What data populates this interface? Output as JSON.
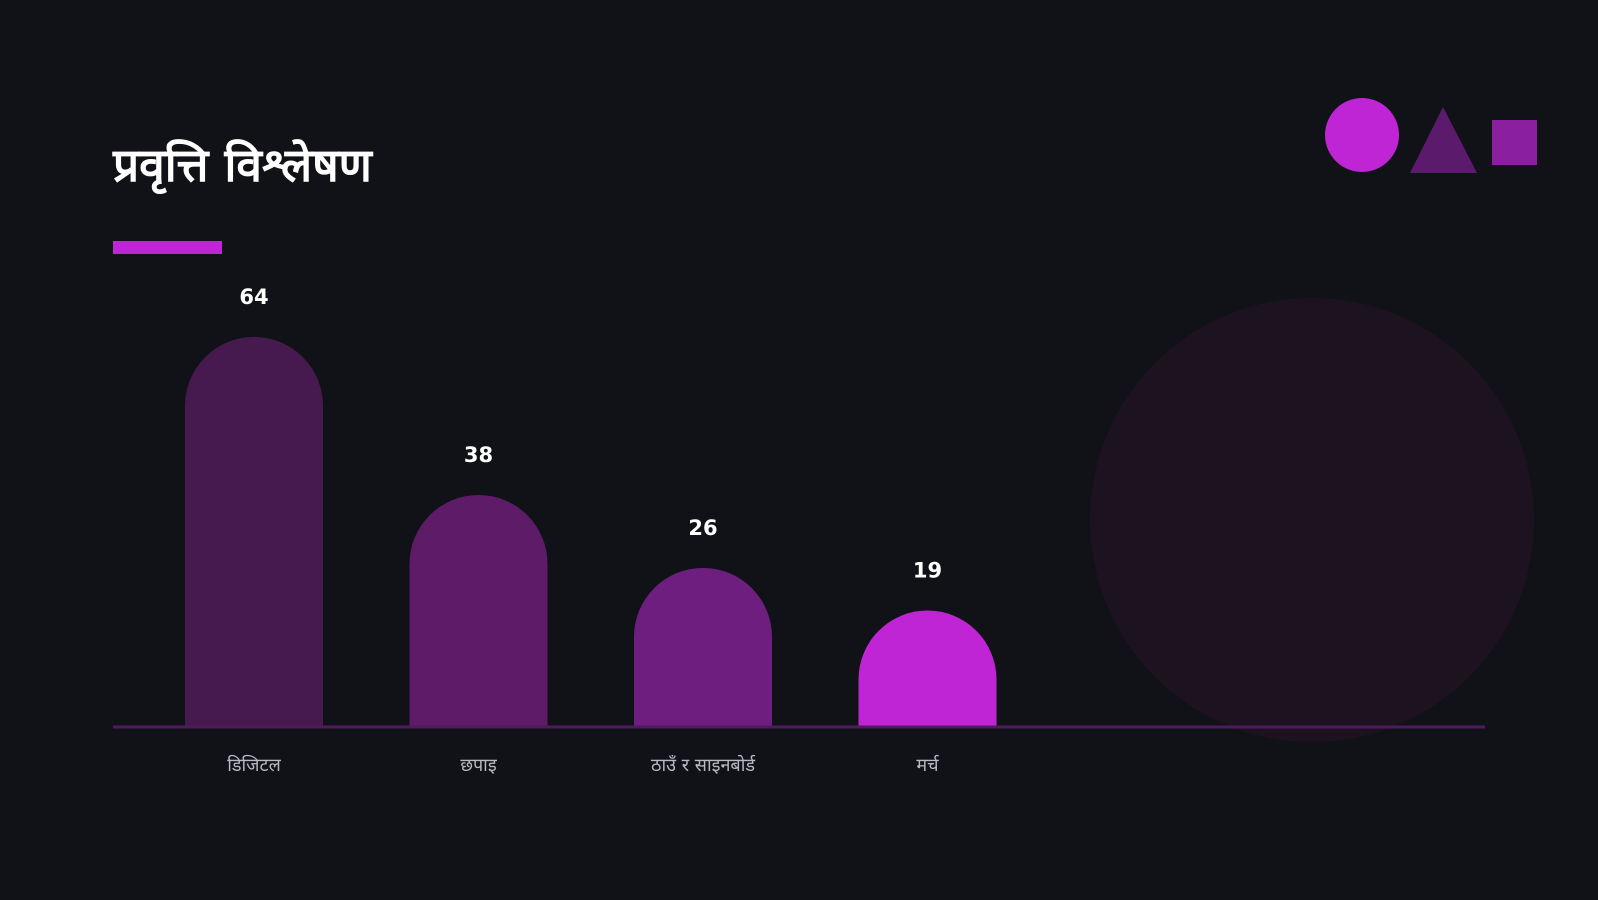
{
  "title": "प्रवृत्ति विश्लेषण",
  "colors": {
    "background": "#111217",
    "accent": "#bf25d4",
    "decor_circle": "#1c1220",
    "triangle": "#5c1a6c",
    "square": "#8a1fa0",
    "axis": "#4f1a5e",
    "title": "#ffffff",
    "category_text": "#b9b9c3",
    "bar_colors": [
      "#461a4f",
      "#5d1b68",
      "#6e1e7e",
      "#bf25d4"
    ]
  },
  "decor_icons": [
    "circle-shape",
    "triangle-shape",
    "square-shape"
  ],
  "chart_data": {
    "type": "bar",
    "title": "प्रवृत्ति विश्लेषण",
    "categories": [
      "डिजिटल",
      "छपाइ",
      "ठाउँ र साइनबोर्ड",
      "मर्च"
    ],
    "values": [
      64,
      38,
      26,
      19
    ],
    "xlabel": "",
    "ylabel": "",
    "ylim": [
      0,
      75
    ],
    "grid": false,
    "legend": "none",
    "data_labels": true
  }
}
